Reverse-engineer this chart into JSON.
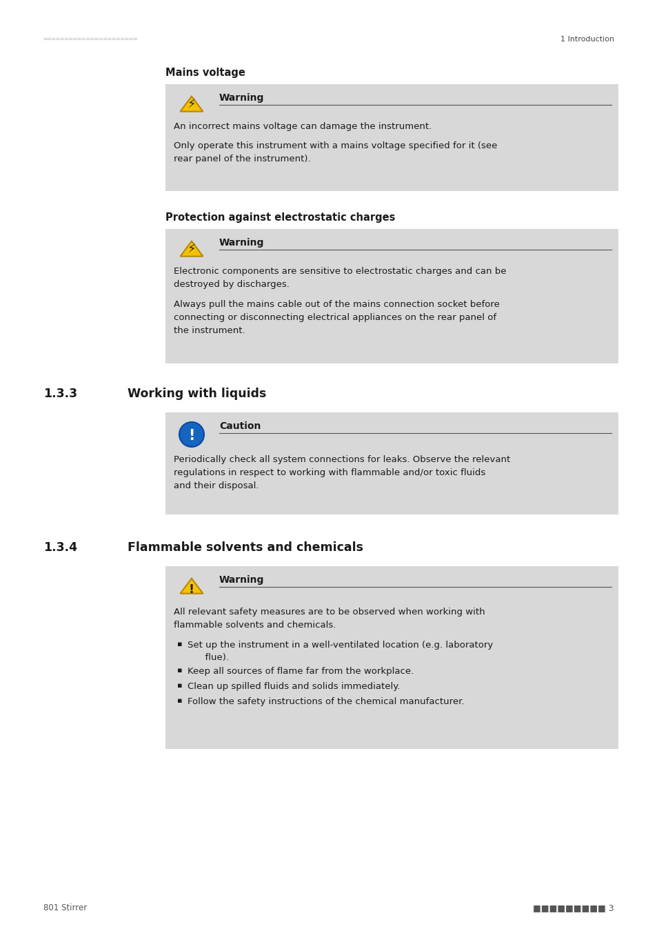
{
  "bg_color": "#ffffff",
  "text_color": "#1a1a1a",
  "gray_box_color": "#d8d8d8",
  "page_width": 9.54,
  "page_height": 13.5,
  "dpi": 100,
  "top_rule_text": "======================",
  "top_right_text": "1 Introduction",
  "bottom_left_text": "801 Stirrer",
  "bottom_right_text": "■■■■■■■■■ 3",
  "section_mains_title": "Mains voltage",
  "section_mains_warning_label": "Warning",
  "section_mains_text1": "An incorrect mains voltage can damage the instrument.",
  "section_mains_text2": "Only operate this instrument with a mains voltage specified for it (see\nrear panel of the instrument).",
  "section_protection_title": "Protection against electrostatic charges",
  "section_protection_warning_label": "Warning",
  "section_protection_text1": "Electronic components are sensitive to electrostatic charges and can be\ndestroyed by discharges.",
  "section_protection_text2": "Always pull the mains cable out of the mains connection socket before\nconnecting or disconnecting electrical appliances on the rear panel of\nthe instrument.",
  "section_133_num": "1.3.3",
  "section_133_title": "Working with liquids",
  "section_133_caution_label": "Caution",
  "section_133_text": "Periodically check all system connections for leaks. Observe the relevant\nregulations in respect to working with flammable and/or toxic fluids\nand their disposal.",
  "section_134_num": "1.3.4",
  "section_134_title": "Flammable solvents and chemicals",
  "section_134_warning_label": "Warning",
  "section_134_text1": "All relevant safety measures are to be observed when working with\nflammable solvents and chemicals.",
  "section_134_bullet1": "Set up the instrument in a well-ventilated location (e.g. laboratory\n      flue).",
  "section_134_bullet2": "Keep all sources of flame far from the workplace.",
  "section_134_bullet3": "Clean up spilled fluids and solids immediately.",
  "section_134_bullet4": "Follow the safety instructions of the chemical manufacturer."
}
